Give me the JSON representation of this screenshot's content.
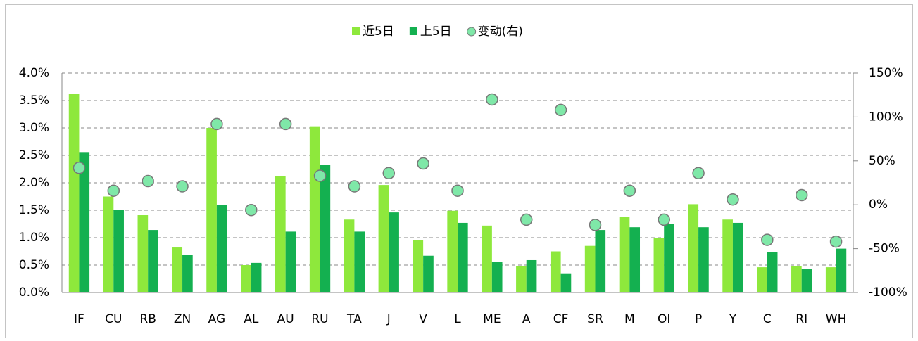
{
  "chart_data": {
    "type": "bar",
    "categories": [
      "IF",
      "CU",
      "RB",
      "ZN",
      "AG",
      "AL",
      "AU",
      "RU",
      "TA",
      "J",
      "V",
      "L",
      "ME",
      "A",
      "CF",
      "SR",
      "M",
      "OI",
      "P",
      "Y",
      "C",
      "RI",
      "WH"
    ],
    "series": [
      {
        "name": "近5日",
        "color": "#8ee83c",
        "values": [
          3.62,
          1.75,
          1.41,
          0.82,
          3.0,
          0.5,
          2.12,
          3.03,
          1.33,
          1.96,
          0.96,
          1.49,
          1.22,
          0.48,
          0.75,
          0.85,
          1.38,
          1.0,
          1.61,
          1.33,
          0.46,
          0.48,
          0.46
        ]
      },
      {
        "name": "上5日",
        "color": "#14b050",
        "values": [
          2.56,
          1.51,
          1.14,
          0.69,
          1.59,
          0.54,
          1.11,
          2.33,
          1.11,
          1.46,
          0.67,
          1.27,
          0.56,
          0.59,
          0.35,
          1.14,
          1.19,
          1.25,
          1.19,
          1.27,
          0.74,
          0.43,
          0.8
        ]
      },
      {
        "name": "变动(右)",
        "color": "#7fe8a8",
        "type": "scatter",
        "axis": "y2",
        "values": [
          42,
          16,
          27,
          21,
          92,
          -6,
          92,
          33,
          21,
          36,
          47,
          16,
          120,
          -17,
          108,
          -23,
          16,
          -17,
          36,
          6,
          -40,
          11,
          -42
        ]
      }
    ],
    "ylim": [
      0,
      4
    ],
    "yticks": [
      {
        "value": 0,
        "label": "0.0%"
      },
      {
        "value": 0.5,
        "label": "0.5%"
      },
      {
        "value": 1,
        "label": "1.0%"
      },
      {
        "value": 1.5,
        "label": "1.5%"
      },
      {
        "value": 2,
        "label": "2.0%"
      },
      {
        "value": 2.5,
        "label": "2.5%"
      },
      {
        "value": 3,
        "label": "3.0%"
      },
      {
        "value": 3.5,
        "label": "3.5%"
      },
      {
        "value": 4,
        "label": "4.0%"
      }
    ],
    "y2lim": [
      -100,
      150
    ],
    "y2ticks": [
      {
        "value": -100,
        "label": "-100%"
      },
      {
        "value": -50,
        "label": "-50%"
      },
      {
        "value": 0,
        "label": "0%"
      },
      {
        "value": 50,
        "label": "50%"
      },
      {
        "value": 100,
        "label": "100%"
      },
      {
        "value": 150,
        "label": "150%"
      }
    ],
    "grid": true,
    "legend": "top"
  }
}
